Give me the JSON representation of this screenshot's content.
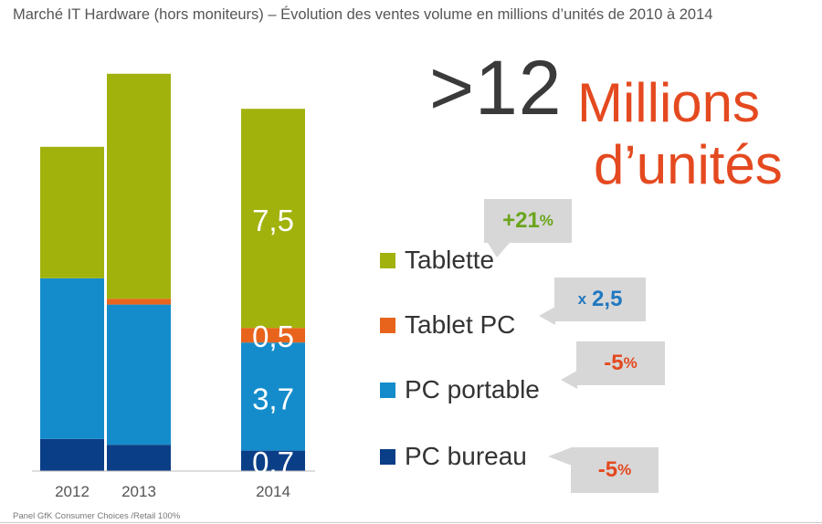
{
  "title": "Marché IT Hardware (hors moniteurs) – Évolution des ventes volume en millions d’unités de 2010 à 2014",
  "headline": {
    "number": ">12",
    "unit_line1": "Millions",
    "unit_line2": "d’unités"
  },
  "source": "Panel GfK Consumer Choices /Retail 100%",
  "colors": {
    "tablette": "#a1b20d",
    "tablet_pc": "#e8641c",
    "pc_portable": "#148ccb",
    "pc_bureau": "#0a3e87",
    "callout_bg": "#d7d7d7",
    "green": "#6aa51b",
    "blue": "#1f78c0",
    "red": "#e4491f"
  },
  "legend": [
    {
      "label": "Tablette",
      "callout": {
        "prefix": "",
        "number": "+21",
        "suffix": "%"
      }
    },
    {
      "label": "Tablet PC",
      "callout": {
        "prefix": "x",
        "number": "2,5",
        "suffix": ""
      }
    },
    {
      "label": "PC portable",
      "callout": {
        "prefix": "",
        "number": "-5",
        "suffix": "%"
      }
    },
    {
      "label": "PC bureau",
      "callout": {
        "prefix": "",
        "number": "-5",
        "suffix": "%"
      }
    }
  ],
  "chart_data": {
    "type": "bar",
    "stacked": true,
    "categories": [
      "2012",
      "2013",
      "2014"
    ],
    "series": [
      {
        "name": "PC bureau",
        "values": [
          1.1,
          0.9,
          0.7
        ]
      },
      {
        "name": "PC portable",
        "values": [
          5.5,
          4.8,
          3.7
        ]
      },
      {
        "name": "Tablet PC",
        "values": [
          0.0,
          0.2,
          0.5
        ]
      },
      {
        "name": "Tablette",
        "values": [
          4.5,
          7.7,
          7.5
        ]
      }
    ],
    "data_labels": {
      "2014": [
        "0,7",
        "3,7",
        "0,5",
        "7,5"
      ]
    },
    "ylim": [
      0,
      15
    ],
    "xlabel": "",
    "ylabel": ""
  }
}
